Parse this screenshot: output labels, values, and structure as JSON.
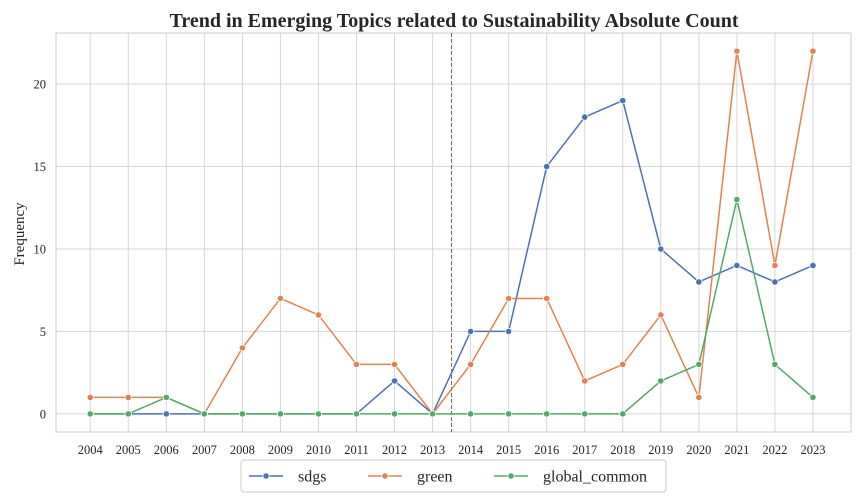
{
  "chart_data": {
    "type": "line",
    "title": "Trend in Emerging Topics related to Sustainability  Absolute Count",
    "xlabel": "",
    "ylabel": "Frequency",
    "x": [
      2004,
      2005,
      2006,
      2007,
      2008,
      2009,
      2010,
      2011,
      2012,
      2013,
      2014,
      2015,
      2016,
      2017,
      2018,
      2019,
      2020,
      2021,
      2022,
      2023
    ],
    "xlim": [
      2003.1,
      2024.0
    ],
    "ylim": [
      -1.1,
      23.1
    ],
    "yticks": [
      0,
      5,
      10,
      15,
      20
    ],
    "grid": true,
    "vline": {
      "x": 2013.5,
      "style": "dashed"
    },
    "legend": {
      "placement": "bottom-center"
    },
    "series": [
      {
        "name": "sdgs",
        "color": "#4c72b0",
        "values": [
          0,
          0,
          0,
          0,
          0,
          0,
          0,
          0,
          2,
          0,
          5,
          5,
          15,
          18,
          19,
          10,
          8,
          9,
          8,
          9
        ]
      },
      {
        "name": "green",
        "color": "#dd8452",
        "values": [
          1,
          1,
          1,
          0,
          4,
          7,
          6,
          3,
          3,
          0,
          3,
          7,
          7,
          2,
          3,
          6,
          1,
          22,
          9,
          22
        ]
      },
      {
        "name": "global_common",
        "color": "#55a868",
        "values": [
          0,
          0,
          1,
          0,
          0,
          0,
          0,
          0,
          0,
          0,
          0,
          0,
          0,
          0,
          0,
          2,
          3,
          13,
          3,
          1
        ]
      }
    ]
  }
}
